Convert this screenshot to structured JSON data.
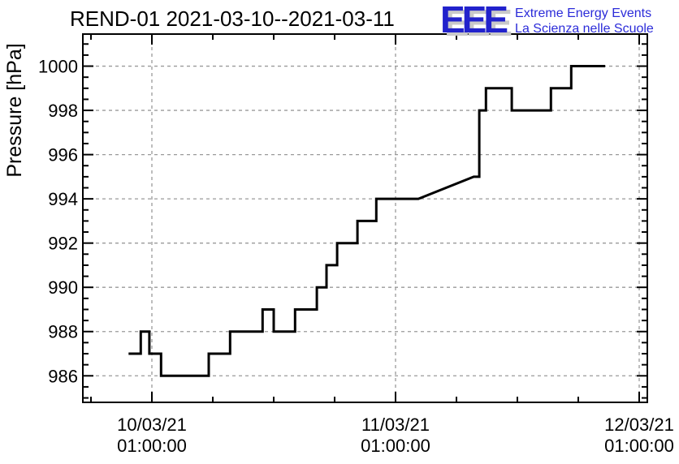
{
  "header": {
    "title": "REND-01 2021-03-10--2021-03-11",
    "logo": {
      "acronym": "EEE",
      "line1": "Extreme Energy Events",
      "line2": "La Scienza nelle Scuole",
      "accent_blue": "#2222cc",
      "shadow_gray": "#c9c9c9"
    }
  },
  "chart_data": {
    "type": "line",
    "title": "REND-01 2021-03-10--2021-03-11",
    "xlabel": "",
    "ylabel": "Pressure [hPa]",
    "x_unit": "hours since 2021-03-10 00:00:00 (read from axis tick labels)",
    "xlim_hours": [
      -5.8,
      49.8
    ],
    "ylim": [
      984.8,
      1001.45
    ],
    "x_ticks_major": [
      {
        "t": 1,
        "line1": "10/03/21",
        "line2": "01:00:00"
      },
      {
        "t": 25,
        "line1": "11/03/21",
        "line2": "01:00:00"
      },
      {
        "t": 49,
        "line1": "12/03/21",
        "line2": "01:00:00"
      }
    ],
    "x_minor_step_hours": 6,
    "y_ticks_major": [
      986,
      988,
      990,
      992,
      994,
      996,
      998,
      1000
    ],
    "y_minor_step": 0.5,
    "grid": "dashed gray lines at every major tick, both axes",
    "legend": "none",
    "line_color": "#000000",
    "grid_color": "#9a9a9a",
    "axis_color": "#000000",
    "series": [
      {
        "name": "pressure",
        "style": "step polyline",
        "points": [
          [
            -1.3,
            987
          ],
          [
            -0.1,
            987
          ],
          [
            -0.1,
            988
          ],
          [
            0.75,
            988
          ],
          [
            0.75,
            987
          ],
          [
            1.9,
            987
          ],
          [
            1.9,
            986
          ],
          [
            6.6,
            986
          ],
          [
            6.6,
            987
          ],
          [
            8.7,
            987
          ],
          [
            8.7,
            988
          ],
          [
            11.9,
            988
          ],
          [
            11.9,
            989
          ],
          [
            13.0,
            989
          ],
          [
            13.0,
            988
          ],
          [
            15.1,
            988
          ],
          [
            15.1,
            989
          ],
          [
            17.25,
            989
          ],
          [
            17.25,
            990
          ],
          [
            18.2,
            990
          ],
          [
            18.2,
            991
          ],
          [
            19.25,
            991
          ],
          [
            19.25,
            992
          ],
          [
            21.25,
            992
          ],
          [
            21.25,
            993
          ],
          [
            23.1,
            993
          ],
          [
            23.1,
            994
          ],
          [
            27.25,
            994
          ],
          [
            32.7,
            995
          ],
          [
            33.25,
            995
          ],
          [
            33.25,
            998
          ],
          [
            33.9,
            998
          ],
          [
            33.9,
            999
          ],
          [
            36.45,
            999
          ],
          [
            36.45,
            998
          ],
          [
            40.3,
            998
          ],
          [
            40.3,
            999
          ],
          [
            42.3,
            999
          ],
          [
            42.3,
            1000
          ],
          [
            45.65,
            1000
          ]
        ]
      }
    ]
  }
}
